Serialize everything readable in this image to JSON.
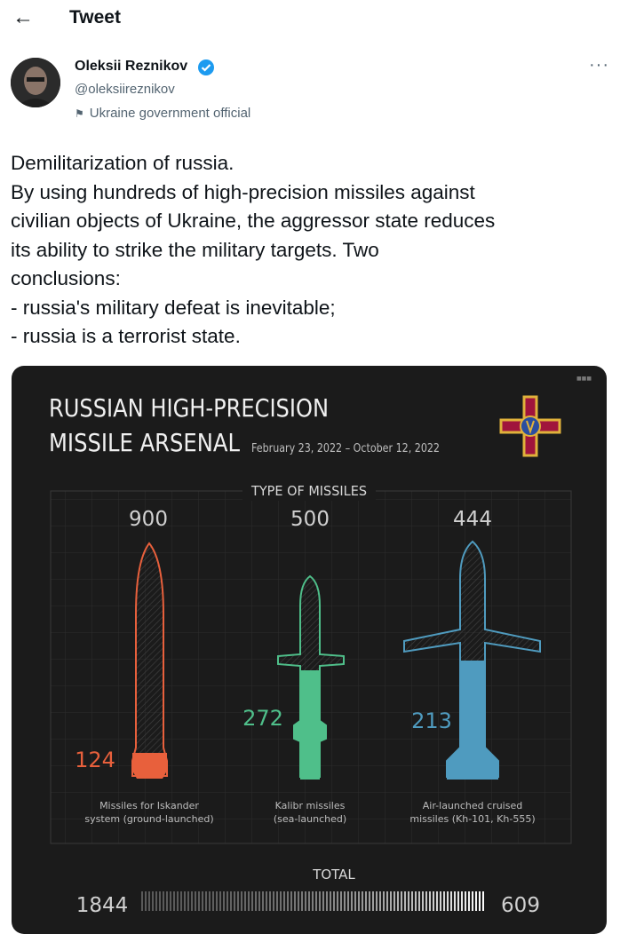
{
  "header": {
    "back_icon": "arrow-left-icon",
    "title": "Tweet"
  },
  "author": {
    "name": "Oleksii Reznikov",
    "handle": "@oleksiireznikov",
    "label": "Ukraine government official",
    "verified_color": "#1d9bf0"
  },
  "more_glyph": "···",
  "tweet": {
    "lines": [
      "Demilitarization of russia.",
      "By using hundreds of high-precision missiles against",
      "civilian objects of Ukraine, the aggressor state reduces",
      "its ability to strike the military targets. Two",
      "conclusions:",
      "- russia's military defeat is inevitable;",
      "- russia is a terrorist state."
    ]
  },
  "infographic": {
    "title_line1": "RUSSIAN HIGH-PRECISION",
    "title_line2": "MISSILE ARSENAL",
    "date_range": "February 23, 2022 – October 12, 2022",
    "section_label": "TYPE OF MISSILES",
    "total_label": "TOTAL",
    "total_left": "1844",
    "total_right": "609",
    "emblem": "ministry-of-defence-emblem",
    "colors": {
      "iskander": "#e8603c",
      "kalibr": "#4fbf8a",
      "kh": "#4f9bbf",
      "outline_gray": "#9a9a9a"
    }
  },
  "chart_data": {
    "type": "bar",
    "title": "RUSSIAN HIGH-PRECISION MISSILE ARSENAL",
    "subtitle": "February 23, 2022 – October 12, 2022",
    "categories": [
      "Missiles for Iskander system (ground-launched)",
      "Kalibr missiles (sea-launched)",
      "Air-launched cruised missiles (Kh-101, Kh-555)"
    ],
    "totals": [
      "900",
      "500",
      "444"
    ],
    "remaining": [
      "124",
      "272",
      "213"
    ],
    "category_label_lines": [
      [
        "Missiles for Iskander",
        "system (ground-launched)"
      ],
      [
        "Kalibr missiles",
        "(sea-launched)"
      ],
      [
        "Air-launched cruised",
        "missiles (Kh-101, Kh-555)"
      ]
    ],
    "series": [
      {
        "values": [
          900,
          500,
          444
        ]
      },
      {
        "values": [
          124,
          272,
          213
        ]
      }
    ],
    "total": {
      "values": [
        1844,
        609
      ]
    }
  }
}
